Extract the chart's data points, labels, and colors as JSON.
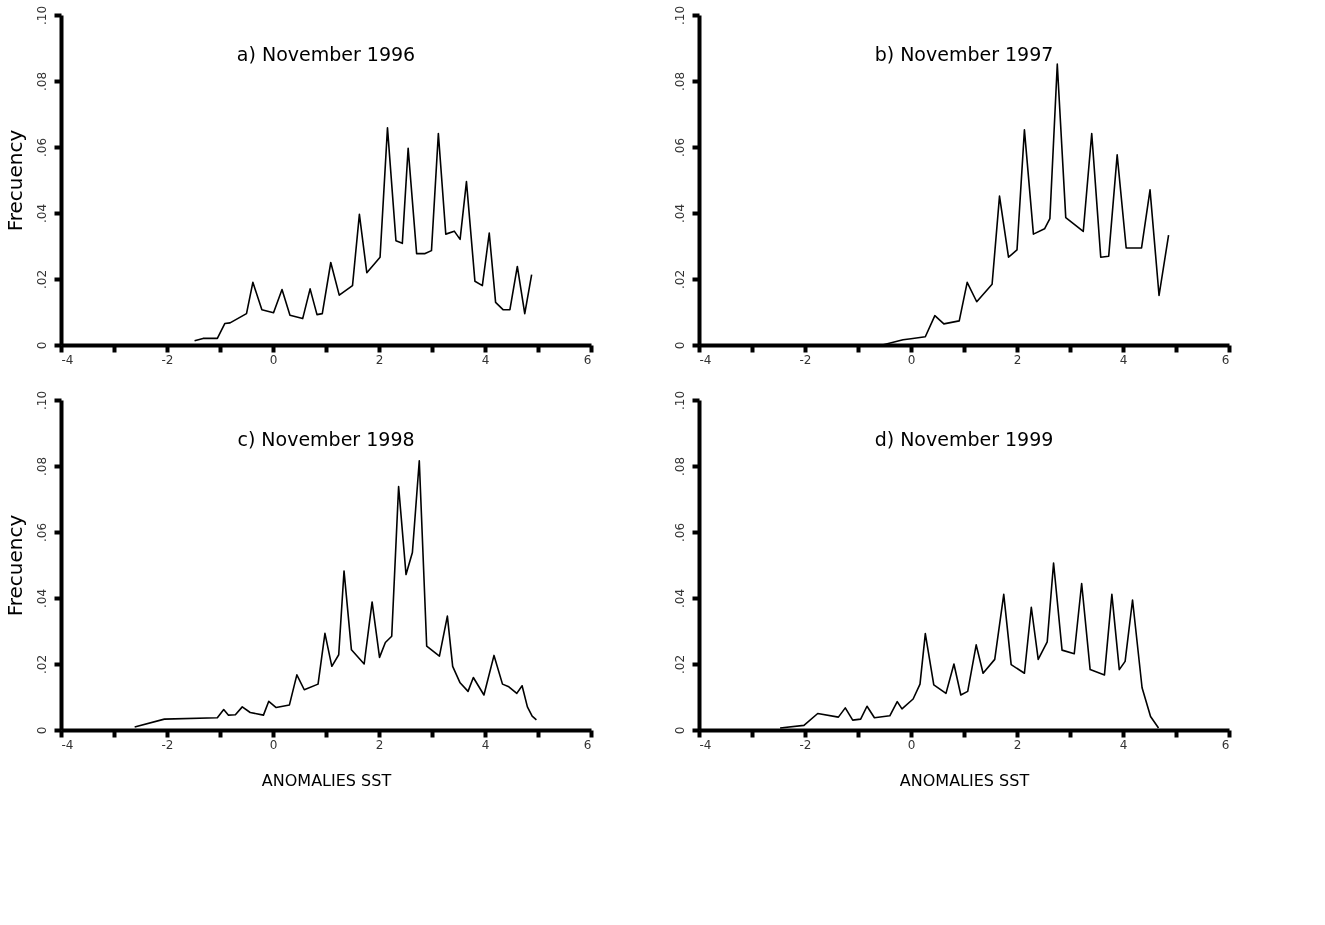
{
  "chart_data": [
    {
      "type": "line",
      "title": "a) November 1996",
      "ylabel": "Frecuency",
      "color": "#000000",
      "grid": false,
      "tick_labels": "xy",
      "x": [
        -1.48,
        -1.32,
        -1.05,
        -0.91,
        -0.81,
        -0.5,
        -0.38,
        -0.21,
        0.01,
        0.17,
        0.32,
        0.56,
        0.7,
        0.83,
        0.93,
        1.09,
        1.25,
        1.5,
        1.63,
        1.77,
        2.02,
        2.16,
        2.32,
        2.44,
        2.55,
        2.71,
        2.87,
        2.99,
        3.12,
        3.26,
        3.42,
        3.53,
        3.65,
        3.81,
        3.95,
        4.08,
        4.2,
        4.34,
        4.47,
        4.61,
        4.75,
        4.88
      ],
      "values": [
        0.0013,
        0.002,
        0.002,
        0.0065,
        0.0067,
        0.0095,
        0.019,
        0.0107,
        0.0098,
        0.0168,
        0.009,
        0.008,
        0.017,
        0.0092,
        0.0095,
        0.025,
        0.0151,
        0.018,
        0.0396,
        0.0219,
        0.0266,
        0.0658,
        0.0316,
        0.0308,
        0.0596,
        0.0277,
        0.0277,
        0.0286,
        0.0641,
        0.0336,
        0.0345,
        0.032,
        0.0495,
        0.0193,
        0.018,
        0.0339,
        0.0129,
        0.0107,
        0.0107,
        0.0238,
        0.0095,
        0.0213
      ],
      "xlim": [
        -4,
        6
      ],
      "ylim": [
        0,
        0.1
      ],
      "xticks": [
        -4,
        {
          "value": -3,
          "label": null
        },
        -2,
        {
          "value": -1,
          "label": null
        },
        0,
        {
          "value": 1,
          "label": null
        },
        2,
        {
          "value": 3,
          "label": null
        },
        4,
        {
          "value": 5,
          "label": null
        },
        6
      ],
      "yticks": [
        0,
        {
          "value": 0.02,
          "label": ".02"
        },
        {
          "value": 0.04,
          "label": ".04"
        },
        {
          "value": 0.06,
          "label": ".06"
        },
        {
          "value": 0.08,
          "label": ".08"
        },
        {
          "value": 0.1,
          "label": ".10"
        }
      ]
    },
    {
      "type": "line",
      "title": "b) November 1997",
      "color": "#000000",
      "grid": false,
      "tick_labels": "xy",
      "x": [
        -0.54,
        -0.15,
        0.0,
        0.27,
        0.45,
        0.62,
        0.91,
        1.06,
        1.24,
        1.53,
        1.67,
        1.84,
        2.0,
        2.14,
        2.31,
        2.52,
        2.62,
        2.76,
        2.92,
        3.25,
        3.41,
        3.58,
        3.73,
        3.89,
        4.06,
        4.35,
        4.51,
        4.68,
        4.86
      ],
      "values": [
        0,
        0.0016,
        0.0019,
        0.0025,
        0.0089,
        0.0064,
        0.0073,
        0.019,
        0.0131,
        0.0184,
        0.0451,
        0.0266,
        0.0288,
        0.0652,
        0.0336,
        0.0352,
        0.0383,
        0.0851,
        0.0386,
        0.0344,
        0.0641,
        0.0266,
        0.0269,
        0.0576,
        0.0294,
        0.0294,
        0.047,
        0.015,
        0.0333
      ],
      "xlim": [
        -4,
        6
      ],
      "ylim": [
        0,
        0.1
      ],
      "xticks": [
        -4,
        {
          "value": -3,
          "label": null
        },
        -2,
        {
          "value": -1,
          "label": null
        },
        0,
        {
          "value": 1,
          "label": null
        },
        2,
        {
          "value": 3,
          "label": null
        },
        4,
        {
          "value": 5,
          "label": null
        },
        6
      ],
      "yticks": [
        0,
        {
          "value": 0.02,
          "label": ".02"
        },
        {
          "value": 0.04,
          "label": ".04"
        },
        {
          "value": 0.06,
          "label": ".06"
        },
        {
          "value": 0.08,
          "label": ".08"
        },
        {
          "value": 0.1,
          "label": ".10"
        }
      ]
    },
    {
      "type": "line",
      "title": "c) November 1998",
      "ylabel": "Frecuency",
      "xlabel": "ANOMALIES SST",
      "color": "#000000",
      "grid": false,
      "tick_labels": "xy",
      "x": [
        -2.61,
        -2.05,
        -1.05,
        -0.93,
        -0.84,
        -0.71,
        -0.58,
        -0.43,
        -0.18,
        -0.08,
        0.06,
        0.31,
        0.45,
        0.59,
        0.85,
        0.98,
        1.11,
        1.24,
        1.34,
        1.48,
        1.72,
        1.87,
        2.01,
        2.12,
        2.24,
        2.37,
        2.51,
        2.63,
        2.76,
        2.9,
        3.14,
        3.29,
        3.39,
        3.53,
        3.68,
        3.78,
        3.98,
        4.17,
        4.33,
        4.45,
        4.6,
        4.7,
        4.8,
        4.89,
        4.97
      ],
      "values": [
        0.0009,
        0.0033,
        0.0037,
        0.0062,
        0.0045,
        0.0046,
        0.007,
        0.0053,
        0.0045,
        0.0087,
        0.0068,
        0.0076,
        0.0167,
        0.0122,
        0.0139,
        0.0293,
        0.0193,
        0.0228,
        0.0482,
        0.0243,
        0.02,
        0.0388,
        0.022,
        0.0265,
        0.0284,
        0.0738,
        0.0471,
        0.0538,
        0.0816,
        0.0254,
        0.0224,
        0.0345,
        0.0193,
        0.0143,
        0.0117,
        0.0159,
        0.0106,
        0.0226,
        0.0139,
        0.0131,
        0.0111,
        0.0134,
        0.007,
        0.0042,
        0.0031
      ],
      "xlim": [
        -4,
        6
      ],
      "ylim": [
        0,
        0.1
      ],
      "xticks": [
        -4,
        {
          "value": -3,
          "label": null
        },
        -2,
        {
          "value": -1,
          "label": null
        },
        0,
        {
          "value": 1,
          "label": null
        },
        2,
        {
          "value": 3,
          "label": null
        },
        4,
        {
          "value": 5,
          "label": null
        },
        6
      ],
      "yticks": [
        0,
        {
          "value": 0.02,
          "label": ".02"
        },
        {
          "value": 0.04,
          "label": ".04"
        },
        {
          "value": 0.06,
          "label": ".06"
        },
        {
          "value": 0.08,
          "label": ".08"
        },
        {
          "value": 0.1,
          "label": ".10"
        }
      ]
    },
    {
      "type": "line",
      "title": "d) November 1999",
      "xlabel": "ANOMALIES SST",
      "color": "#000000",
      "grid": false,
      "tick_labels": "xy",
      "x": [
        -2.47,
        -2.02,
        -1.76,
        -1.37,
        -1.24,
        -1.1,
        -0.95,
        -0.83,
        -0.69,
        -0.4,
        -0.26,
        -0.17,
        0.04,
        0.17,
        0.27,
        0.43,
        0.66,
        0.81,
        0.94,
        1.07,
        1.23,
        1.36,
        1.58,
        1.75,
        1.89,
        2.14,
        2.27,
        2.4,
        2.57,
        2.69,
        2.85,
        3.08,
        3.22,
        3.38,
        3.65,
        3.79,
        3.93,
        4.04,
        4.18,
        4.36,
        4.52,
        4.67
      ],
      "values": [
        0.0006,
        0.0014,
        0.005,
        0.0039,
        0.0067,
        0.003,
        0.0033,
        0.0072,
        0.0037,
        0.0043,
        0.0086,
        0.0064,
        0.0094,
        0.0139,
        0.0292,
        0.0137,
        0.0111,
        0.02,
        0.0106,
        0.0117,
        0.0258,
        0.0172,
        0.0214,
        0.0411,
        0.0198,
        0.0172,
        0.0372,
        0.0214,
        0.0267,
        0.0506,
        0.0242,
        0.0231,
        0.0444,
        0.0183,
        0.0167,
        0.0411,
        0.0183,
        0.0208,
        0.0394,
        0.0128,
        0.0041,
        0.0006
      ],
      "xlim": [
        -4,
        6
      ],
      "ylim": [
        0,
        0.1
      ],
      "xticks": [
        -4,
        {
          "value": -3,
          "label": null
        },
        -2,
        {
          "value": -1,
          "label": null
        },
        0,
        {
          "value": 1,
          "label": null
        },
        2,
        {
          "value": 3,
          "label": null
        },
        4,
        {
          "value": 5,
          "label": null
        },
        6
      ],
      "yticks": [
        0,
        {
          "value": 0.02,
          "label": ".02"
        },
        {
          "value": 0.04,
          "label": ".04"
        },
        {
          "value": 0.06,
          "label": ".06"
        },
        {
          "value": 0.08,
          "label": ".08"
        },
        {
          "value": 0.1,
          "label": ".10"
        }
      ]
    }
  ]
}
